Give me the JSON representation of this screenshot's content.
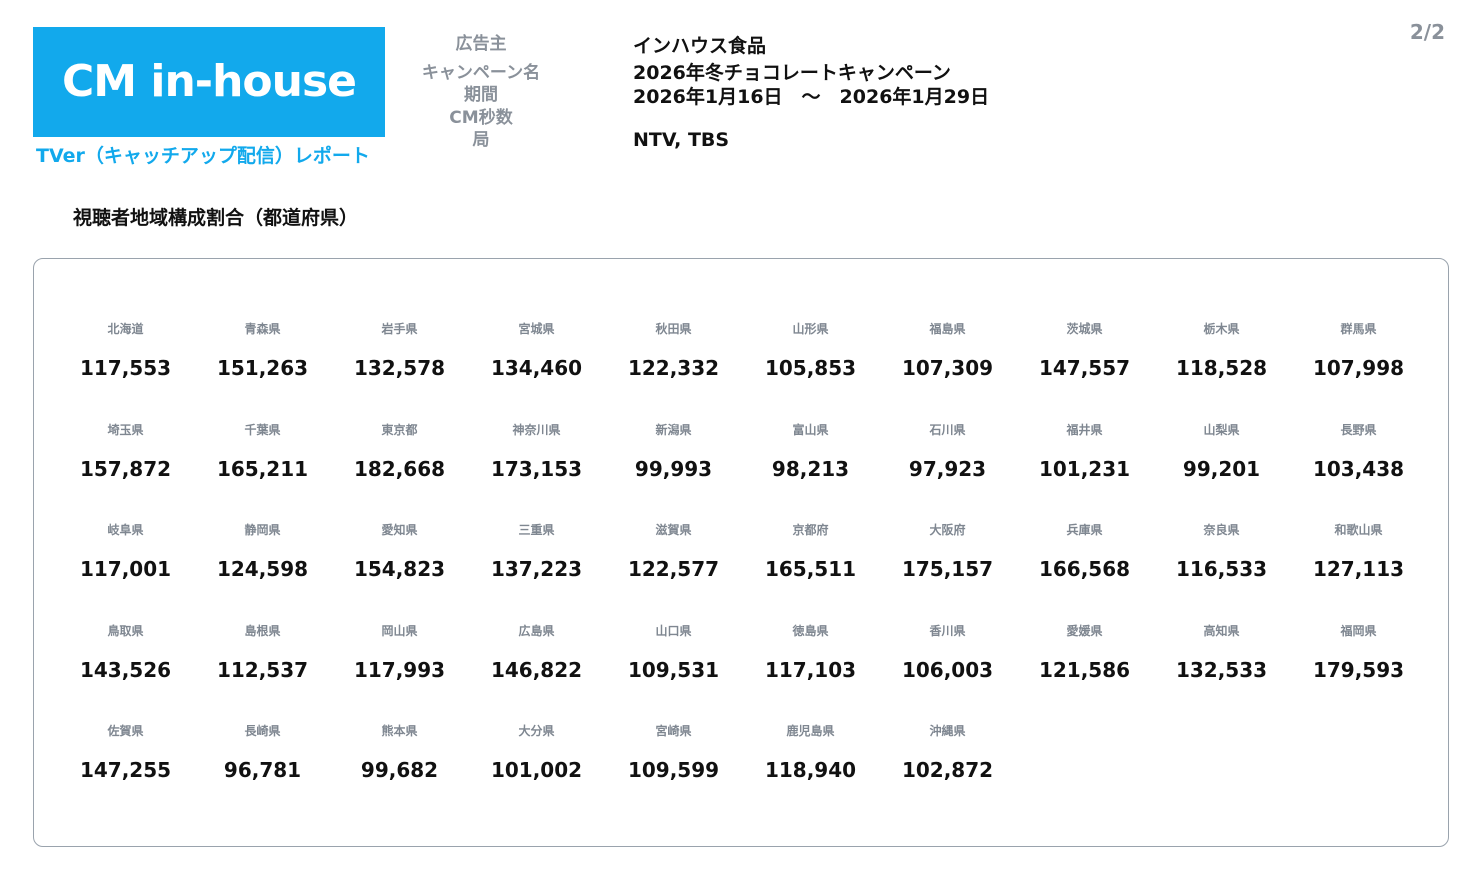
{
  "header": {
    "logo_text": "CM in-house",
    "report_subtitle": "TVer（キャッチアップ配信）レポート",
    "page_number": "2/2",
    "brand_color": "#12a9ec"
  },
  "meta": {
    "labels": {
      "advertiser": "広告主",
      "campaign": "キャンペーン名",
      "period": "期間",
      "duration": "CM秒数",
      "station": "局"
    },
    "values": {
      "advertiser": "インハウス食品",
      "campaign": "2026年冬チョコレートキャンペーン",
      "period": "2026年1月16日　～　2026年1月29日",
      "duration": "",
      "station": "NTV, TBS"
    }
  },
  "section_title": "視聴者地域構成割合（都道府県）",
  "prefectures": [
    {
      "name": "北海道",
      "value": "117,553"
    },
    {
      "name": "青森県",
      "value": "151,263"
    },
    {
      "name": "岩手県",
      "value": "132,578"
    },
    {
      "name": "宮城県",
      "value": "134,460"
    },
    {
      "name": "秋田県",
      "value": "122,332"
    },
    {
      "name": "山形県",
      "value": "105,853"
    },
    {
      "name": "福島県",
      "value": "107,309"
    },
    {
      "name": "茨城県",
      "value": "147,557"
    },
    {
      "name": "栃木県",
      "value": "118,528"
    },
    {
      "name": "群馬県",
      "value": "107,998"
    },
    {
      "name": "埼玉県",
      "value": "157,872"
    },
    {
      "name": "千葉県",
      "value": "165,211"
    },
    {
      "name": "東京都",
      "value": "182,668"
    },
    {
      "name": "神奈川県",
      "value": "173,153"
    },
    {
      "name": "新潟県",
      "value": "99,993"
    },
    {
      "name": "富山県",
      "value": "98,213"
    },
    {
      "name": "石川県",
      "value": "97,923"
    },
    {
      "name": "福井県",
      "value": "101,231"
    },
    {
      "name": "山梨県",
      "value": "99,201"
    },
    {
      "name": "長野県",
      "value": "103,438"
    },
    {
      "name": "岐阜県",
      "value": "117,001"
    },
    {
      "name": "静岡県",
      "value": "124,598"
    },
    {
      "name": "愛知県",
      "value": "154,823"
    },
    {
      "name": "三重県",
      "value": "137,223"
    },
    {
      "name": "滋賀県",
      "value": "122,577"
    },
    {
      "name": "京都府",
      "value": "165,511"
    },
    {
      "name": "大阪府",
      "value": "175,157"
    },
    {
      "name": "兵庫県",
      "value": "166,568"
    },
    {
      "name": "奈良県",
      "value": "116,533"
    },
    {
      "name": "和歌山県",
      "value": "127,113"
    },
    {
      "name": "鳥取県",
      "value": "143,526"
    },
    {
      "name": "島根県",
      "value": "112,537"
    },
    {
      "name": "岡山県",
      "value": "117,993"
    },
    {
      "name": "広島県",
      "value": "146,822"
    },
    {
      "name": "山口県",
      "value": "109,531"
    },
    {
      "name": "徳島県",
      "value": "117,103"
    },
    {
      "name": "香川県",
      "value": "106,003"
    },
    {
      "name": "愛媛県",
      "value": "121,586"
    },
    {
      "name": "高知県",
      "value": "132,533"
    },
    {
      "name": "福岡県",
      "value": "179,593"
    },
    {
      "name": "佐賀県",
      "value": "147,255"
    },
    {
      "name": "長崎県",
      "value": "96,781"
    },
    {
      "name": "熊本県",
      "value": "99,682"
    },
    {
      "name": "大分県",
      "value": "101,002"
    },
    {
      "name": "宮崎県",
      "value": "109,599"
    },
    {
      "name": "鹿児島県",
      "value": "118,940"
    },
    {
      "name": "沖縄県",
      "value": "102,872"
    }
  ]
}
